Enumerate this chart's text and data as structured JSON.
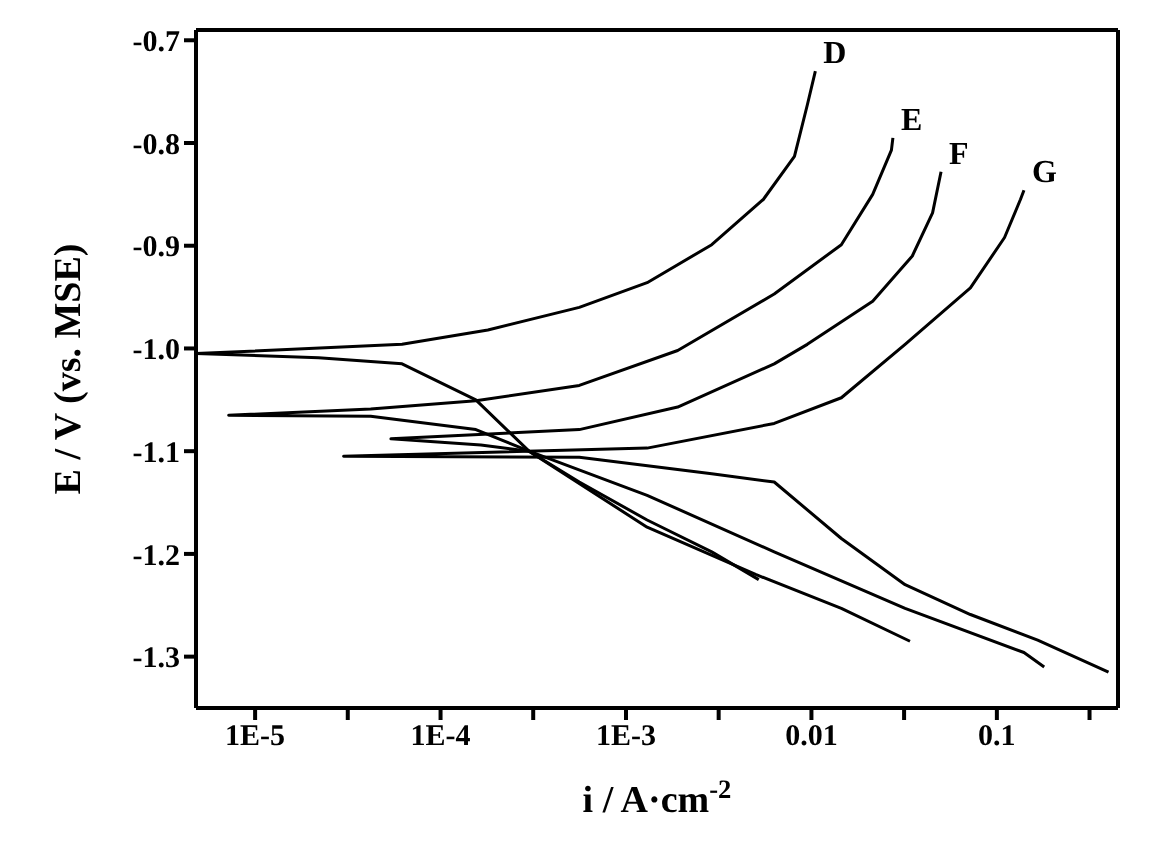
{
  "chart_data": {
    "type": "line",
    "xlabel": "i / A·cm$^{-2}$",
    "ylabel": "E / V (vs. MSE)",
    "log": "x",
    "xlim": [
      4.8e-06,
      0.45
    ],
    "xticks": [
      {
        "value": 1e-05,
        "label": "1E-5"
      },
      {
        "value": 3.16e-05,
        "label": null
      },
      {
        "value": 0.0001,
        "label": "1E-4"
      },
      {
        "value": 0.000316,
        "label": null
      },
      {
        "value": 0.001,
        "label": "1E-3"
      },
      {
        "value": 0.00316,
        "label": null
      },
      0.01,
      {
        "value": 0.0316,
        "label": null
      },
      0.1,
      {
        "value": 0.316,
        "label": null
      }
    ],
    "ylim": [
      -1.35,
      -0.69
    ],
    "yticks": [
      {
        "value": -1.3,
        "label": "-1.3"
      },
      {
        "value": -1.2,
        "label": "-1.2"
      },
      {
        "value": -1.1,
        "label": "-1.1"
      },
      {
        "value": -1,
        "label": "-1.0"
      },
      {
        "value": -0.9,
        "label": "-0.9"
      },
      {
        "value": -0.8,
        "label": "-0.8"
      },
      {
        "value": -0.7,
        "label": "-0.7"
      }
    ],
    "series": [
      {
        "name": "D",
        "color": "#000000",
        "x": [
          0.0105,
          0.0095,
          0.0081,
          0.0055,
          0.0029,
          0.0013,
          0.00056,
          0.00018,
          6.2e-05,
          4.8e-06,
          2.2e-05,
          6.2e-05,
          0.000155,
          0.0003,
          0.00056,
          0.0013,
          0.0029,
          0.0052
        ],
        "values": [
          -0.73,
          -0.763,
          -0.813,
          -0.855,
          -0.899,
          -0.936,
          -0.96,
          -0.982,
          -0.996,
          -1.005,
          -1.009,
          -1.015,
          -1.05,
          -1.1,
          -1.13,
          -1.167,
          -1.198,
          -1.225
        ]
      },
      {
        "name": "E",
        "color": "#000000",
        "x": [
          0.0275,
          0.027,
          0.0214,
          0.0145,
          0.0063,
          0.0019,
          0.00056,
          0.000155,
          4.2e-05,
          7.2e-06,
          4.2e-05,
          0.000155,
          0.0003,
          0.0013,
          0.005,
          0.0145,
          0.034
        ],
        "values": [
          -0.795,
          -0.807,
          -0.85,
          -0.899,
          -0.947,
          -1.002,
          -1.036,
          -1.051,
          -1.059,
          -1.065,
          -1.066,
          -1.079,
          -1.1,
          -1.174,
          -1.22,
          -1.253,
          -1.285
        ]
      },
      {
        "name": "F",
        "color": "#000000",
        "x": [
          0.05,
          0.045,
          0.035,
          0.0214,
          0.0095,
          0.0063,
          0.0019,
          0.00056,
          5.4e-05,
          0.000165,
          0.0003,
          0.0013,
          0.0063,
          0.032,
          0.14,
          0.18
        ],
        "values": [
          -0.828,
          -0.868,
          -0.91,
          -0.954,
          -0.996,
          -1.015,
          -1.057,
          -1.079,
          -1.088,
          -1.094,
          -1.1,
          -1.143,
          -1.198,
          -1.253,
          -1.296,
          -1.31
        ]
      },
      {
        "name": "G",
        "color": "#000000",
        "x": [
          0.14,
          0.134,
          0.11,
          0.072,
          0.032,
          0.0145,
          0.0063,
          0.0013,
          3e-05,
          0.00056,
          0.0029,
          0.0063,
          0.0145,
          0.032,
          0.072,
          0.166,
          0.4
        ],
        "values": [
          -0.846,
          -0.855,
          -0.892,
          -0.941,
          -0.996,
          -1.048,
          -1.073,
          -1.097,
          -1.105,
          -1.106,
          -1.122,
          -1.13,
          -1.185,
          -1.23,
          -1.259,
          -1.284,
          -1.315
        ]
      }
    ]
  }
}
